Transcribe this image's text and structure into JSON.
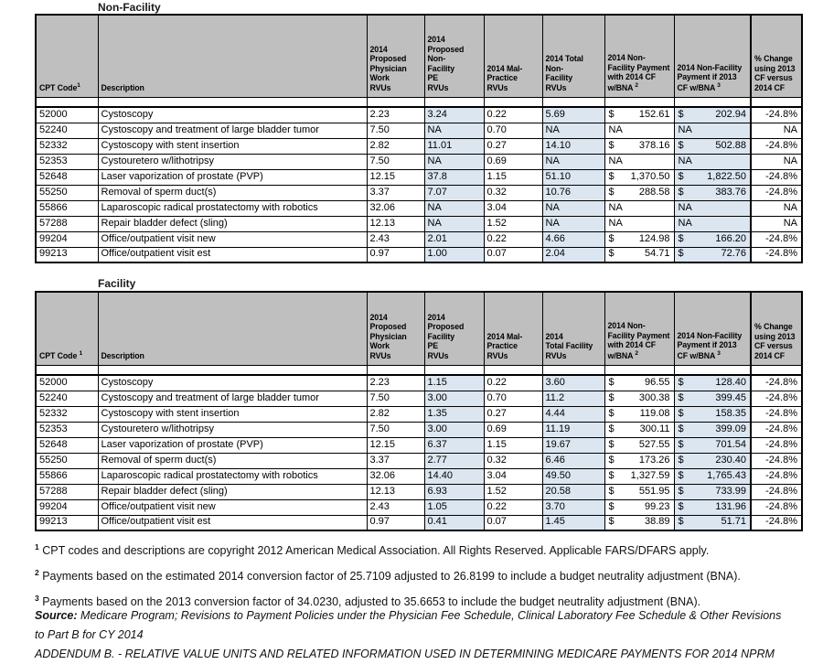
{
  "colors": {
    "header_bg": "#bfbfbf",
    "shaded_cell": "#dce6f1",
    "border": "#000000"
  },
  "tables": [
    {
      "title": "Non-Facility",
      "headers": [
        {
          "key": "cpt-code",
          "text": "CPT Code",
          "sup": "1"
        },
        {
          "key": "description",
          "text": "Description"
        },
        {
          "key": "work-rvus",
          "text": "2014\nProposed\nPhysician\nWork\nRVUs"
        },
        {
          "key": "pe-rvus",
          "text": "2014\nProposed\nNon-\nFacility\nPE\nRVUs"
        },
        {
          "key": "malpractice-rvus",
          "text": "2014 Mal-\nPractice\nRVUs"
        },
        {
          "key": "total-rvus",
          "text": "2014 Total\nNon-\nFacility\nRVUs"
        },
        {
          "key": "payment-2014-cf",
          "text": "2014 Non-\nFacility Payment\nwith 2014 CF\nw/BNA ",
          "sup": "2"
        },
        {
          "key": "payment-2013-cf",
          "text": "2014 Non-Facility\nPayment if 2013\nCF w/BNA ",
          "sup": "3"
        },
        {
          "key": "pct-change",
          "text": "% Change\nusing 2013\nCF versus\n2014 CF"
        }
      ],
      "rows": [
        {
          "code": "52000",
          "desc": "Cystoscopy",
          "work": "2.23",
          "pe": "3.24",
          "mp": "0.22",
          "total": "5.69",
          "pay2014": "152.61",
          "pay2013": "202.94",
          "change": "-24.8%"
        },
        {
          "code": "52240",
          "desc": "Cystoscopy and treatment of large bladder tumor",
          "work": "7.50",
          "pe": "NA",
          "mp": "0.70",
          "total": "NA",
          "pay2014": "NA",
          "pay2013": "NA",
          "change": "NA"
        },
        {
          "code": "52332",
          "desc": "Cystoscopy with stent insertion",
          "work": "2.82",
          "pe": "11.01",
          "mp": "0.27",
          "total": "14.10",
          "pay2014": "378.16",
          "pay2013": "502.88",
          "change": "-24.8%"
        },
        {
          "code": "52353",
          "desc": "Cystouretero w/lithotripsy",
          "work": "7.50",
          "pe": "NA",
          "mp": "0.69",
          "total": "NA",
          "pay2014": "NA",
          "pay2013": "NA",
          "change": "NA"
        },
        {
          "code": "52648",
          "desc": "Laser vaporization of prostate (PVP)",
          "work": "12.15",
          "pe": "37.8",
          "mp": "1.15",
          "total": "51.10",
          "pay2014": "1,370.50",
          "pay2013": "1,822.50",
          "change": "-24.8%"
        },
        {
          "code": "55250",
          "desc": "Removal of sperm duct(s)",
          "work": "3.37",
          "pe": "7.07",
          "mp": "0.32",
          "total": "10.76",
          "pay2014": "288.58",
          "pay2013": "383.76",
          "change": "-24.8%"
        },
        {
          "code": "55866",
          "desc": "Laparoscopic radical prostatectomy with robotics",
          "work": "32.06",
          "pe": "NA",
          "mp": "3.04",
          "total": "NA",
          "pay2014": "NA",
          "pay2013": "NA",
          "change": "NA"
        },
        {
          "code": "57288",
          "desc": "Repair bladder defect (sling)",
          "work": "12.13",
          "pe": "NA",
          "mp": "1.52",
          "total": "NA",
          "pay2014": "NA",
          "pay2013": "NA",
          "change": "NA"
        },
        {
          "code": "99204",
          "desc": "Office/outpatient visit new",
          "work": "2.43",
          "pe": "2.01",
          "mp": "0.22",
          "total": "4.66",
          "pay2014": "124.98",
          "pay2013": "166.20",
          "change": "-24.8%"
        },
        {
          "code": "99213",
          "desc": "Office/outpatient visit est",
          "work": "0.97",
          "pe": "1.00",
          "mp": "0.07",
          "total": "2.04",
          "pay2014": "54.71",
          "pay2013": "72.76",
          "change": "-24.8%"
        }
      ]
    },
    {
      "title": "Facility",
      "headers": [
        {
          "key": "cpt-code",
          "text": "CPT Code ",
          "sup": "1"
        },
        {
          "key": "description",
          "text": "Description"
        },
        {
          "key": "work-rvus",
          "text": "2014\nProposed\nPhysician\nWork\nRVUs"
        },
        {
          "key": "pe-rvus",
          "text": "2014\nProposed\nFacility\nPE\nRVUs"
        },
        {
          "key": "malpractice-rvus",
          "text": "2014 Mal-\nPractice\nRVUs"
        },
        {
          "key": "total-rvus",
          "text": "2014\nTotal Facility\nRVUs"
        },
        {
          "key": "payment-2014-cf",
          "text": "2014 Non-\nFacility Payment\nwith 2014 CF\nw/BNA ",
          "sup": "2"
        },
        {
          "key": "payment-2013-cf",
          "text": "2014 Non-Facility\nPayment if 2013\nCF w/BNA ",
          "sup": "3"
        },
        {
          "key": "pct-change",
          "text": "% Change\nusing 2013\nCF versus\n2014 CF"
        }
      ],
      "rows": [
        {
          "code": "52000",
          "desc": "Cystoscopy",
          "work": "2.23",
          "pe": "1.15",
          "mp": "0.22",
          "total": "3.60",
          "pay2014": "96.55",
          "pay2013": "128.40",
          "change": "-24.8%"
        },
        {
          "code": "52240",
          "desc": "Cystoscopy and treatment of large bladder tumor",
          "work": "7.50",
          "pe": "3.00",
          "mp": "0.70",
          "total": "11.2",
          "pay2014": "300.38",
          "pay2013": "399.45",
          "change": "-24.8%"
        },
        {
          "code": "52332",
          "desc": "Cystoscopy with stent insertion",
          "work": "2.82",
          "pe": "1.35",
          "mp": "0.27",
          "total": "4.44",
          "pay2014": "119.08",
          "pay2013": "158.35",
          "change": "-24.8%"
        },
        {
          "code": "52353",
          "desc": "Cystouretero w/lithotripsy",
          "work": "7.50",
          "pe": "3.00",
          "mp": "0.69",
          "total": "11.19",
          "pay2014": "300.11",
          "pay2013": "399.09",
          "change": "-24.8%"
        },
        {
          "code": "52648",
          "desc": "Laser vaporization of prostate (PVP)",
          "work": "12.15",
          "pe": "6.37",
          "mp": "1.15",
          "total": "19.67",
          "pay2014": "527.55",
          "pay2013": "701.54",
          "change": "-24.8%"
        },
        {
          "code": "55250",
          "desc": "Removal of sperm duct(s)",
          "work": "3.37",
          "pe": "2.77",
          "mp": "0.32",
          "total": "6.46",
          "pay2014": "173.26",
          "pay2013": "230.40",
          "change": "-24.8%"
        },
        {
          "code": "55866",
          "desc": "Laparoscopic radical prostatectomy with robotics",
          "work": "32.06",
          "pe": "14.40",
          "mp": "3.04",
          "total": "49.50",
          "pay2014": "1,327.59",
          "pay2013": "1,765.43",
          "change": "-24.8%"
        },
        {
          "code": "57288",
          "desc": "Repair bladder defect (sling)",
          "work": "12.13",
          "pe": "6.93",
          "mp": "1.52",
          "total": "20.58",
          "pay2014": "551.95",
          "pay2013": "733.99",
          "change": "-24.8%"
        },
        {
          "code": "99204",
          "desc": "Office/outpatient visit new",
          "work": "2.43",
          "pe": "1.05",
          "mp": "0.22",
          "total": "3.70",
          "pay2014": "99.23",
          "pay2013": "131.96",
          "change": "-24.8%"
        },
        {
          "code": "99213",
          "desc": "Office/outpatient visit est",
          "work": "0.97",
          "pe": "0.41",
          "mp": "0.07",
          "total": "1.45",
          "pay2014": "38.89",
          "pay2013": "51.71",
          "change": "-24.8%"
        }
      ]
    }
  ],
  "document": {
    "currency_symbol": "$",
    "footnotes": [
      {
        "sup": "1",
        "text": "CPT codes and descriptions are copyright 2012 American Medical Association. All Rights Reserved. Applicable FARS/DFARS apply."
      },
      {
        "sup": "2",
        "text": "Payments based on the estimated 2014 conversion factor of 25.7109 adjusted to 26.8199 to include a budget neutrality adjustment (BNA)."
      },
      {
        "sup": "3",
        "text": "Payments based on the 2013 conversion factor of 34.0230, adjusted to 35.6653 to include the budget neutrality adjustment (BNA)."
      }
    ],
    "source_label": "Source:",
    "source_text": "Medicare Program; Revisions to Payment Policies under the Physician Fee Schedule, Clinical Laboratory Fee Schedule & Other Revisions to Part B for CY 2014",
    "addendum_text": "ADDENDUM B. - RELATIVE VALUE UNITS AND RELATED INFORMATION USED IN DETERMINING MEDICARE PAYMENTS FOR 2014 NPRM"
  }
}
